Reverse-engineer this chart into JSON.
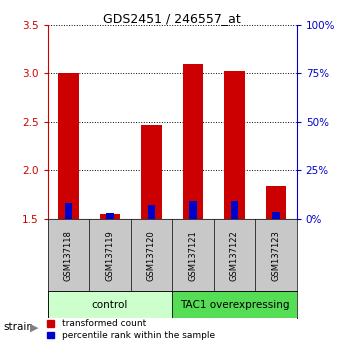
{
  "title": "GDS2451 / 246557_at",
  "samples": [
    "GSM137118",
    "GSM137119",
    "GSM137120",
    "GSM137121",
    "GSM137122",
    "GSM137123"
  ],
  "red_values": [
    3.0,
    1.55,
    2.47,
    3.1,
    3.02,
    1.84
  ],
  "blue_values": [
    0.16,
    0.06,
    0.14,
    0.18,
    0.18,
    0.07
  ],
  "baseline": 1.5,
  "ylim": [
    1.5,
    3.5
  ],
  "yticks": [
    1.5,
    2.0,
    2.5,
    3.0,
    3.5
  ],
  "right_yticks": [
    0,
    25,
    50,
    75,
    100
  ],
  "bar_width": 0.5,
  "blue_bar_width": 0.18,
  "red_color": "#cc0000",
  "blue_color": "#0000cc",
  "control_label": "control",
  "overexp_label": "TAC1 overexpressing",
  "control_bg": "#ccffcc",
  "overexp_bg": "#55dd55",
  "strain_label": "strain",
  "legend_red": "transformed count",
  "legend_blue": "percentile rank within the sample",
  "plot_bg": "#ffffff",
  "tick_color_left": "#cc0000",
  "tick_color_right": "#0000cc",
  "label_bg": "#c8c8c8"
}
